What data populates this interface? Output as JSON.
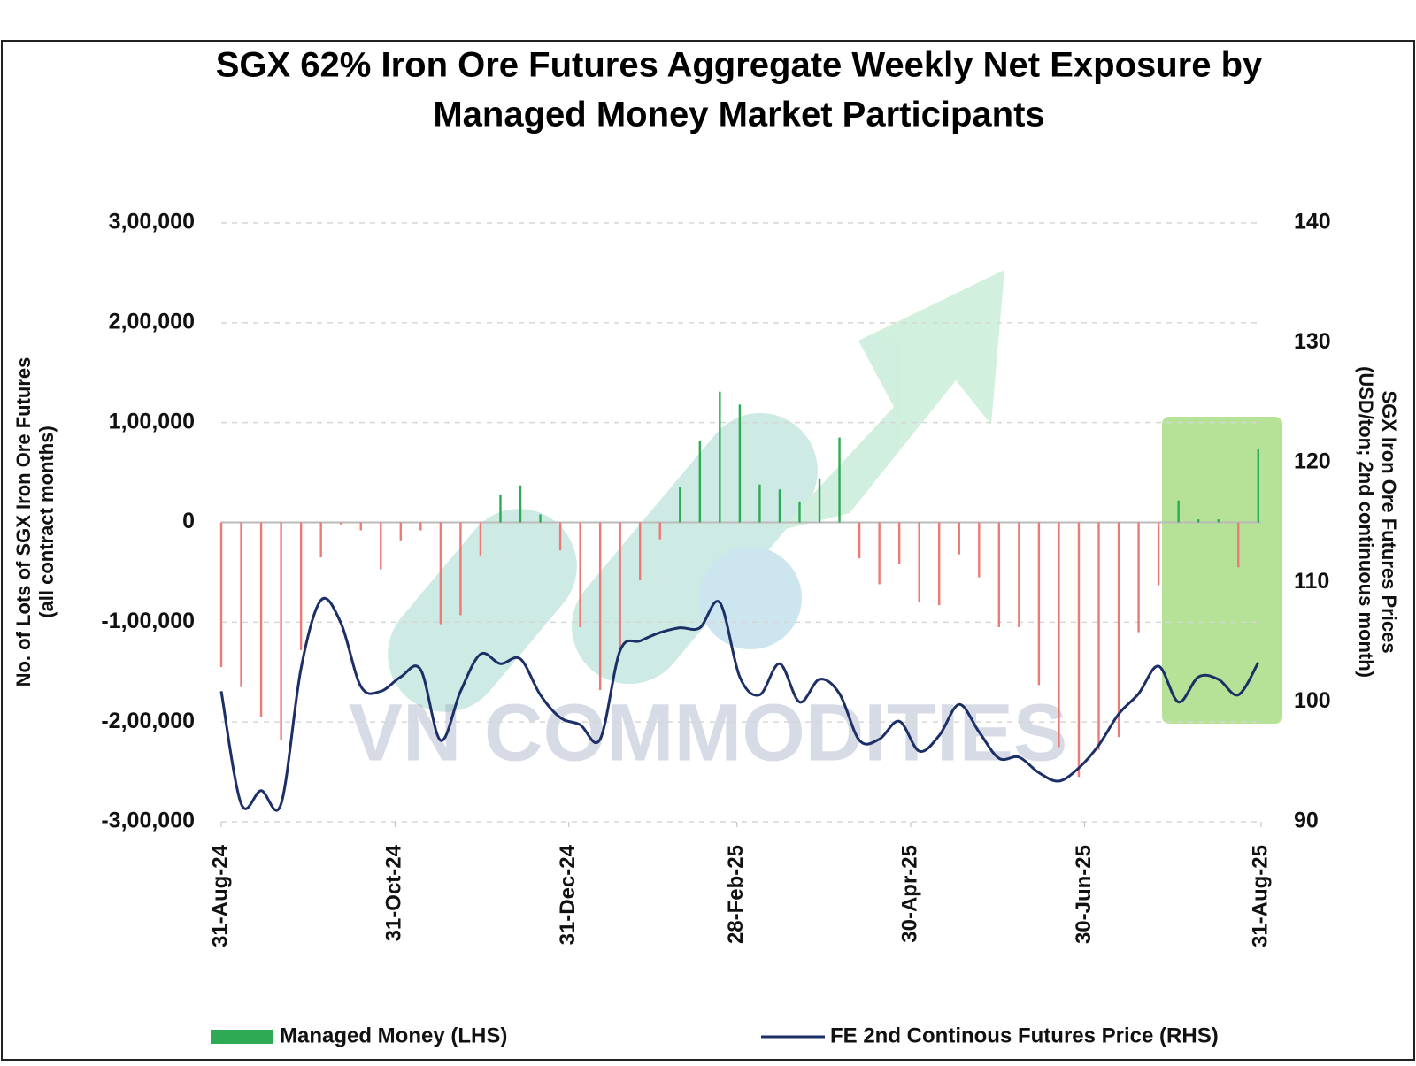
{
  "chart_data": {
    "type": "bar-line",
    "title": [
      "SGX 62% Iron Ore Futures Aggregate Weekly Net Exposure by",
      "Managed Money Market Participants"
    ],
    "ylabel": [
      "No. of Lots of SGX Iron Ore Futures",
      "(all contract months)"
    ],
    "y2label": [
      "SGX Iron Ore Futures Prices",
      "(USD/ton; 2nd continuous month)"
    ],
    "watermark": "VN COMMODITIES",
    "x": [
      "2024-08-31",
      "2024-09-07",
      "2024-09-14",
      "2024-09-21",
      "2024-09-28",
      "2024-10-05",
      "2024-10-12",
      "2024-10-19",
      "2024-10-26",
      "2024-11-02",
      "2024-11-09",
      "2024-11-16",
      "2024-11-23",
      "2024-11-30",
      "2024-12-07",
      "2024-12-14",
      "2024-12-21",
      "2024-12-28",
      "2025-01-04",
      "2025-01-11",
      "2025-01-18",
      "2025-01-25",
      "2025-02-01",
      "2025-02-08",
      "2025-02-15",
      "2025-02-22",
      "2025-03-01",
      "2025-03-08",
      "2025-03-15",
      "2025-03-22",
      "2025-03-29",
      "2025-04-05",
      "2025-04-12",
      "2025-04-19",
      "2025-04-26",
      "2025-05-03",
      "2025-05-10",
      "2025-05-17",
      "2025-05-24",
      "2025-05-31",
      "2025-06-07",
      "2025-06-14",
      "2025-06-21",
      "2025-06-28",
      "2025-07-05",
      "2025-07-12",
      "2025-07-19",
      "2025-07-26",
      "2025-08-02",
      "2025-08-09",
      "2025-08-16",
      "2025-08-23",
      "2025-08-30"
    ],
    "xlim": [
      "2024-08-31",
      "2025-08-31"
    ],
    "xticks": [
      {
        "value": "2024-08-31",
        "label": "31-Aug-24"
      },
      {
        "value": "2024-10-31",
        "label": "31-Oct-24"
      },
      {
        "value": "2024-12-31",
        "label": "31-Dec-24"
      },
      {
        "value": "2025-02-28",
        "label": "28-Feb-25"
      },
      {
        "value": "2025-04-30",
        "label": "30-Apr-25"
      },
      {
        "value": "2025-06-30",
        "label": "30-Jun-25"
      },
      {
        "value": "2025-08-31",
        "label": "31-Aug-25"
      }
    ],
    "ylim": [
      -300000,
      300000
    ],
    "yticks": [
      {
        "value": -300000,
        "label": "-3,00,000"
      },
      {
        "value": -200000,
        "label": "-2,00,000"
      },
      {
        "value": -100000,
        "label": "-1,00,000"
      },
      0,
      {
        "value": 100000,
        "label": "1,00,000"
      },
      {
        "value": 200000,
        "label": "2,00,000"
      },
      {
        "value": 300000,
        "label": "3,00,000"
      }
    ],
    "y2lim": [
      90,
      140
    ],
    "y2ticks": [
      90,
      100,
      110,
      120,
      130,
      140
    ],
    "grid": true,
    "legend": "bottom",
    "series": [
      {
        "name": "Managed Money (LHS)",
        "type": "bar",
        "color": "#2eaa55",
        "negative_color": "#ee7a76",
        "values": [
          -145000,
          -165000,
          -195000,
          -218000,
          -128000,
          -35000,
          -2000,
          -8000,
          -47000,
          -18000,
          -8000,
          -102000,
          -93000,
          -33000,
          28000,
          37000,
          8000,
          -28000,
          -105000,
          -168000,
          -130000,
          -58000,
          -17000,
          35000,
          82000,
          131000,
          118000,
          38000,
          33000,
          21000,
          44000,
          85000,
          -36000,
          -62000,
          -42000,
          -80000,
          -83000,
          -32000,
          -55000,
          -105000,
          -105000,
          -163000,
          -225000,
          -255000,
          -228000,
          -215000,
          -110000,
          -63000,
          22000,
          3000,
          3000,
          -45000,
          74000
        ]
      },
      {
        "name": "FE 2nd Continous Futures Price (RHS)",
        "type": "line",
        "axis": "y2",
        "color": "#1c2f66",
        "values": [
          100.9,
          91.5,
          92.6,
          91.5,
          102.8,
          108.5,
          106.6,
          101.3,
          100.9,
          102.1,
          102.7,
          96.8,
          100.9,
          104.0,
          103.2,
          103.6,
          100.6,
          98.7,
          98.1,
          96.9,
          104.3,
          105.1,
          105.8,
          106.2,
          106.2,
          108.3,
          102.1,
          100.6,
          103.2,
          100.0,
          101.9,
          100.7,
          96.8,
          96.9,
          98.4,
          95.9,
          97.2,
          99.8,
          97.5,
          95.3,
          95.4,
          94.1,
          93.4,
          94.5,
          96.4,
          99.0,
          100.7,
          103.0,
          100.0,
          102.1,
          101.9,
          100.6,
          103.3
        ]
      }
    ]
  }
}
